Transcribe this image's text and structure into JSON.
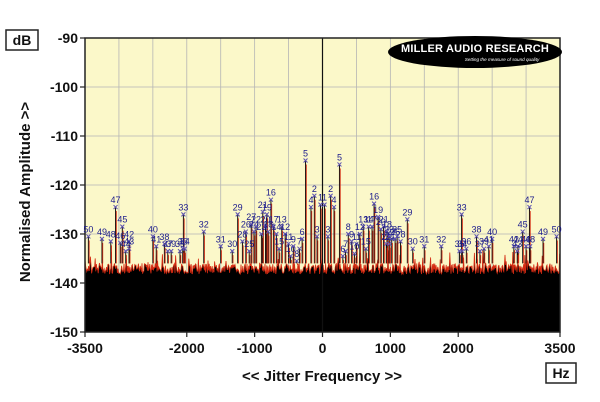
{
  "logo": {
    "name": "MILLER AUDIO RESEARCH",
    "tagline": "Setting the measure of sound quality"
  },
  "colors": {
    "background": "#fbf8c9",
    "grid": "#b5b5b5",
    "floor": "#000000",
    "noise_trace": "#d42a12",
    "spike": "#111111",
    "marker": "#5a4fb0",
    "peak_label": "#1a1a8c"
  },
  "chart_data": {
    "type": "line",
    "title": "",
    "xlabel": "<< Jitter Frequency >>",
    "ylabel": "Normalised Amplitude >>",
    "x_unit": "Hz",
    "y_unit": "dB",
    "xlim": [
      -3500,
      3500
    ],
    "ylim": [
      -150,
      -90
    ],
    "x_ticks": [
      -3500,
      -2000,
      -1000,
      0,
      1000,
      2000,
      3500
    ],
    "x_tick_labels": [
      "-3500",
      "-2000",
      "-1000",
      "0",
      "1000",
      "2000",
      "3500"
    ],
    "y_ticks": [
      -90,
      -100,
      -110,
      -120,
      -130,
      -140,
      -150
    ],
    "y_tick_labels": [
      "-90",
      "-100",
      "-110",
      "-120",
      "-130",
      "-140",
      "-150"
    ],
    "grid": true,
    "noise_floor": -136,
    "peaks": [
      {
        "label": "5",
        "x": -250,
        "y": -115
      },
      {
        "label": "5",
        "x": 250,
        "y": -115.8
      },
      {
        "label": "2",
        "x": -120,
        "y": -122.2
      },
      {
        "label": "2",
        "x": 120,
        "y": -122.2
      },
      {
        "label": "4",
        "x": -170,
        "y": -124.5
      },
      {
        "label": "4",
        "x": 170,
        "y": -124.5
      },
      {
        "label": "1",
        "x": -30,
        "y": -124
      },
      {
        "label": "1",
        "x": 30,
        "y": -124
      },
      {
        "label": "47",
        "x": -3050,
        "y": -124.5
      },
      {
        "label": "47",
        "x": 3050,
        "y": -124.5
      },
      {
        "label": "45",
        "x": -2950,
        "y": -128.5
      },
      {
        "label": "45",
        "x": 2950,
        "y": -129.5
      },
      {
        "label": "50",
        "x": -3450,
        "y": -130.5
      },
      {
        "label": "50",
        "x": 3450,
        "y": -130.5
      },
      {
        "label": "49",
        "x": -3250,
        "y": -131
      },
      {
        "label": "49",
        "x": 3250,
        "y": -131
      },
      {
        "label": "48",
        "x": -3120,
        "y": -131.5
      },
      {
        "label": "46",
        "x": -2980,
        "y": -131.8
      },
      {
        "label": "42",
        "x": -2850,
        "y": -131.5
      },
      {
        "label": "43",
        "x": -2850,
        "y": -133
      },
      {
        "label": "44",
        "x": 2880,
        "y": -132.5
      },
      {
        "label": "40",
        "x": -2500,
        "y": -130.5
      },
      {
        "label": "40",
        "x": 2500,
        "y": -131
      },
      {
        "label": "41",
        "x": -2450,
        "y": -132.5
      },
      {
        "label": "41",
        "x": 2450,
        "y": -132.5
      },
      {
        "label": "38",
        "x": -2330,
        "y": -132
      },
      {
        "label": "38",
        "x": 2270,
        "y": -130.5
      },
      {
        "label": "39",
        "x": -2230,
        "y": -133.5
      },
      {
        "label": "39",
        "x": 2380,
        "y": -133
      },
      {
        "label": "37",
        "x": -2280,
        "y": -133.5
      },
      {
        "label": "34",
        "x": -2030,
        "y": -133
      },
      {
        "label": "35",
        "x": 2020,
        "y": -133.5
      },
      {
        "label": "33",
        "x": -2050,
        "y": -126
      },
      {
        "label": "33",
        "x": 2050,
        "y": -126
      },
      {
        "label": "32",
        "x": -1750,
        "y": -129.5
      },
      {
        "label": "32",
        "x": 1750,
        "y": -132.5
      },
      {
        "label": "31",
        "x": -1500,
        "y": -132.5
      },
      {
        "label": "31",
        "x": 1500,
        "y": -132.5
      },
      {
        "label": "29",
        "x": -1250,
        "y": -126
      },
      {
        "label": "29",
        "x": 1250,
        "y": -127
      },
      {
        "label": "30",
        "x": -1330,
        "y": -133.5
      },
      {
        "label": "30",
        "x": 1330,
        "y": -133
      },
      {
        "label": "27",
        "x": -1050,
        "y": -128
      },
      {
        "label": "28",
        "x": -1180,
        "y": -131.5
      },
      {
        "label": "28",
        "x": 1150,
        "y": -131.5
      },
      {
        "label": "26",
        "x": -1130,
        "y": -129.5
      },
      {
        "label": "25",
        "x": -1080,
        "y": -133.5
      },
      {
        "label": "24",
        "x": -1010,
        "y": -129.5
      },
      {
        "label": "22",
        "x": -980,
        "y": -128.5
      },
      {
        "label": "23",
        "x": -900,
        "y": -130
      },
      {
        "label": "20",
        "x": -840,
        "y": -128.5
      },
      {
        "label": "21",
        "x": -880,
        "y": -125.5
      },
      {
        "label": "18",
        "x": -800,
        "y": -129.5
      },
      {
        "label": "19",
        "x": -820,
        "y": -126
      },
      {
        "label": "19",
        "x": 820,
        "y": -126.5
      },
      {
        "label": "16",
        "x": -760,
        "y": -123
      },
      {
        "label": "16",
        "x": 760,
        "y": -123.8
      },
      {
        "label": "17",
        "x": -720,
        "y": -128.5
      },
      {
        "label": "14",
        "x": 680,
        "y": -128.5
      },
      {
        "label": "15",
        "x": -640,
        "y": -133
      },
      {
        "label": "15",
        "x": 640,
        "y": -133
      },
      {
        "label": "13",
        "x": -600,
        "y": -128.5
      },
      {
        "label": "13",
        "x": 600,
        "y": -128.5
      },
      {
        "label": "12",
        "x": -550,
        "y": -130
      },
      {
        "label": "12",
        "x": 550,
        "y": -130
      },
      {
        "label": "11",
        "x": -500,
        "y": -132
      },
      {
        "label": "11",
        "x": 500,
        "y": -132
      },
      {
        "label": "10",
        "x": -470,
        "y": -134.5
      },
      {
        "label": "10",
        "x": 470,
        "y": -134
      },
      {
        "label": "9",
        "x": -430,
        "y": -132.5
      },
      {
        "label": "9",
        "x": 430,
        "y": -131.5
      },
      {
        "label": "8",
        "x": -380,
        "y": -135.5
      },
      {
        "label": "8",
        "x": 380,
        "y": -130
      },
      {
        "label": "7",
        "x": -340,
        "y": -133
      },
      {
        "label": "7",
        "x": 340,
        "y": -133.5
      },
      {
        "label": "6",
        "x": -300,
        "y": -131
      },
      {
        "label": "6",
        "x": 300,
        "y": -134.5
      },
      {
        "label": "3",
        "x": -80,
        "y": -130.5
      },
      {
        "label": "3",
        "x": 80,
        "y": -130.5
      },
      {
        "label": "20",
        "x": 860,
        "y": -129
      },
      {
        "label": "21",
        "x": 900,
        "y": -128.5
      },
      {
        "label": "18",
        "x": 950,
        "y": -129.5
      },
      {
        "label": "27",
        "x": 1020,
        "y": -131
      },
      {
        "label": "26",
        "x": 1070,
        "y": -131
      },
      {
        "label": "25",
        "x": 1100,
        "y": -130.5
      },
      {
        "label": "24",
        "x": 990,
        "y": -132
      },
      {
        "label": "22",
        "x": 940,
        "y": -132
      },
      {
        "label": "23",
        "x": 980,
        "y": -130.5
      },
      {
        "label": "17",
        "x": 730,
        "y": -128.5
      },
      {
        "label": "36",
        "x": -2060,
        "y": -133
      },
      {
        "label": "36",
        "x": 2120,
        "y": -133
      },
      {
        "label": "34",
        "x": 2060,
        "y": -133.5
      },
      {
        "label": "37",
        "x": 2320,
        "y": -133.5
      },
      {
        "label": "42",
        "x": 2820,
        "y": -132.5
      },
      {
        "label": "43",
        "x": 2870,
        "y": -133.5
      },
      {
        "label": "46",
        "x": 3000,
        "y": -132.5
      },
      {
        "label": "48",
        "x": 3060,
        "y": -132.5
      },
      {
        "label": "44",
        "x": -2900,
        "y": -133.5
      },
      {
        "label": "14",
        "x": -680,
        "y": -130
      },
      {
        "label": "35",
        "x": -2100,
        "y": -133.5
      }
    ]
  }
}
